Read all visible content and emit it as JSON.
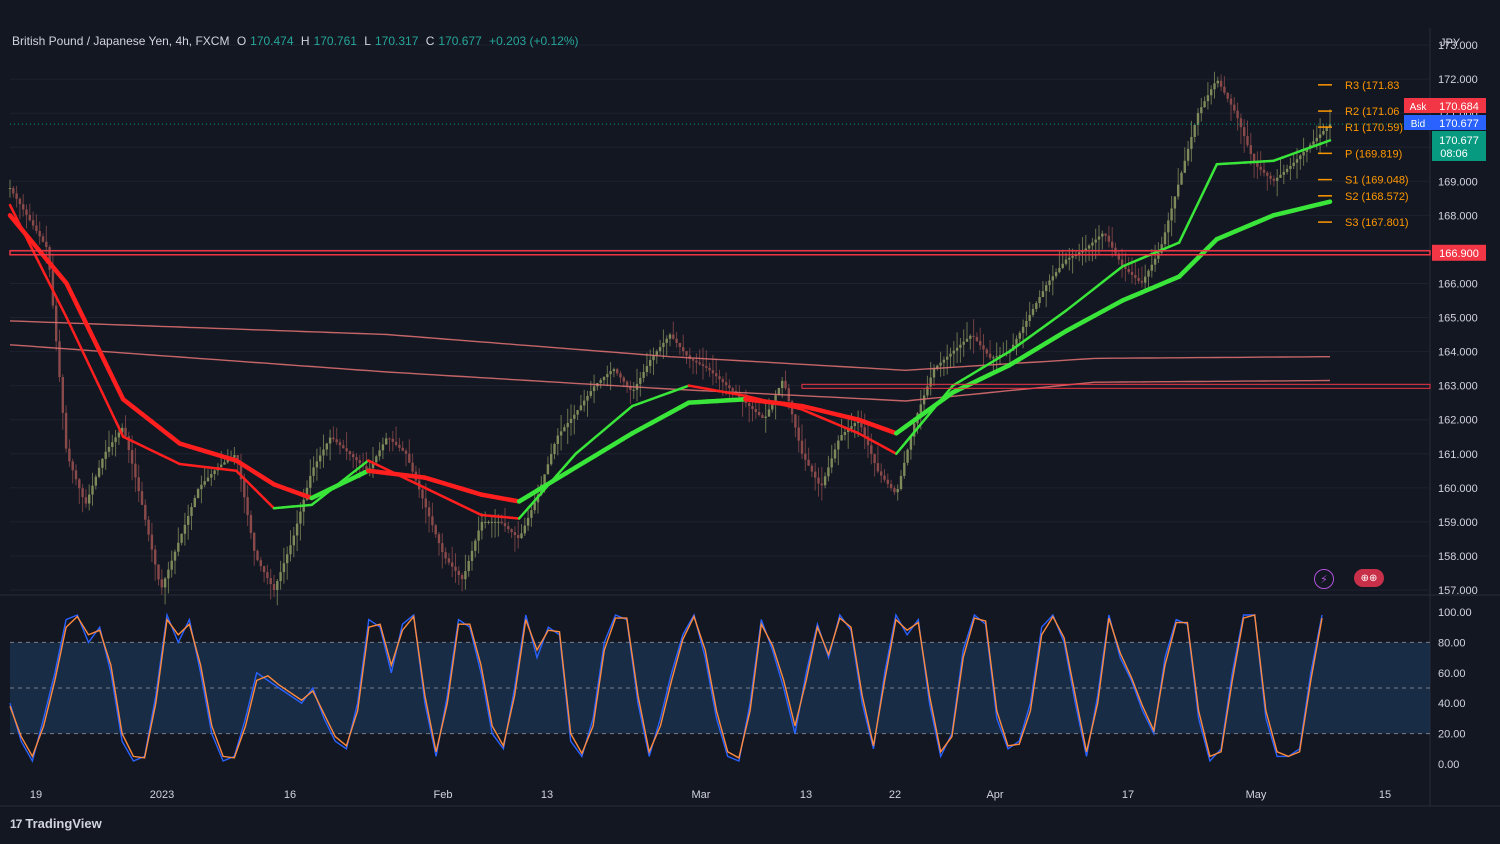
{
  "header": {
    "symbol": "British Pound / Japanese Yen, 4h, FXCM",
    "o_label": "O",
    "o": "170.474",
    "h_label": "H",
    "h": "170.761",
    "l_label": "L",
    "l": "170.317",
    "c_label": "C",
    "c": "170.677",
    "change": "+0.203 (+0.12%)"
  },
  "brand": "TradingView",
  "colors": {
    "background": "#131722",
    "grid": "#1e2230",
    "text": "#d1d4dc",
    "bull_ribbon": "#39e639",
    "bear_ribbon": "#ff1f1f",
    "resistance": "#f23645",
    "pivot": "#ff9800",
    "stoch_k": "#2962ff",
    "stoch_d": "#ff8a3d",
    "stoch_band": "#1b3453"
  },
  "icons": [
    "lightning-icon",
    "uk-japan-flags-icon"
  ],
  "chart_data": [
    {
      "type": "candlestick",
      "title": "",
      "ylabel": "JPY",
      "ylim": [
        157.0,
        173.0
      ],
      "y_ticks": [
        "173.000",
        "172.000",
        "171.000",
        "170.000",
        "169.000",
        "168.000",
        "167.000",
        "166.000",
        "165.000",
        "164.000",
        "163.000",
        "162.000",
        "161.000",
        "160.000",
        "159.000",
        "158.000",
        "157.000"
      ],
      "x_ticks": [
        "19",
        "2023",
        "16",
        "Feb",
        "13",
        "Mar",
        "13",
        "22",
        "Apr",
        "17",
        "May",
        "15"
      ],
      "price_path": [
        [
          0,
          168.8
        ],
        [
          4,
          167.0
        ],
        [
          6,
          161.0
        ],
        [
          8,
          159.5
        ],
        [
          10,
          161.0
        ],
        [
          12,
          161.8
        ],
        [
          14,
          159.5
        ],
        [
          16,
          157.0
        ],
        [
          18,
          158.5
        ],
        [
          20,
          160.0
        ],
        [
          22,
          160.6
        ],
        [
          24,
          161.0
        ],
        [
          26,
          158.0
        ],
        [
          28,
          157.0
        ],
        [
          30,
          158.5
        ],
        [
          32,
          160.5
        ],
        [
          34,
          161.5
        ],
        [
          36,
          161.0
        ],
        [
          38,
          160.5
        ],
        [
          40,
          161.5
        ],
        [
          42,
          161.0
        ],
        [
          44,
          159.5
        ],
        [
          46,
          158.0
        ],
        [
          48,
          157.3
        ],
        [
          50,
          159.0
        ],
        [
          52,
          159.0
        ],
        [
          54,
          158.5
        ],
        [
          56,
          159.8
        ],
        [
          58,
          161.5
        ],
        [
          60,
          162.2
        ],
        [
          62,
          163.0
        ],
        [
          64,
          163.5
        ],
        [
          66,
          162.8
        ],
        [
          68,
          163.8
        ],
        [
          70,
          164.5
        ],
        [
          72,
          163.8
        ],
        [
          74,
          163.5
        ],
        [
          76,
          163.0
        ],
        [
          78,
          162.5
        ],
        [
          80,
          162.0
        ],
        [
          82,
          163.2
        ],
        [
          84,
          161.0
        ],
        [
          86,
          160.0
        ],
        [
          88,
          161.5
        ],
        [
          90,
          162.0
        ],
        [
          92,
          160.5
        ],
        [
          94,
          159.8
        ],
        [
          96,
          162.0
        ],
        [
          98,
          163.5
        ],
        [
          100,
          164.0
        ],
        [
          102,
          164.5
        ],
        [
          104,
          163.8
        ],
        [
          106,
          164.0
        ],
        [
          108,
          165.0
        ],
        [
          110,
          166.0
        ],
        [
          112,
          166.7
        ],
        [
          114,
          167.0
        ],
        [
          116,
          167.5
        ],
        [
          118,
          166.5
        ],
        [
          120,
          166.0
        ],
        [
          122,
          167.0
        ],
        [
          124,
          169.0
        ],
        [
          126,
          171.0
        ],
        [
          128,
          172.0
        ],
        [
          130,
          171.0
        ],
        [
          132,
          169.5
        ],
        [
          134,
          169.0
        ],
        [
          136,
          169.5
        ],
        [
          138,
          170.1
        ],
        [
          140,
          170.677
        ]
      ],
      "ribbons": {
        "fast": [
          [
            0,
            168.3
          ],
          [
            6,
            165.0
          ],
          [
            12,
            161.5
          ],
          [
            18,
            160.7
          ],
          [
            24,
            160.5
          ],
          [
            28,
            159.4
          ],
          [
            32,
            159.5
          ],
          [
            38,
            160.8
          ],
          [
            44,
            160.0
          ],
          [
            50,
            159.2
          ],
          [
            54,
            159.1
          ],
          [
            60,
            161.0
          ],
          [
            66,
            162.4
          ],
          [
            72,
            163.0
          ],
          [
            78,
            162.7
          ],
          [
            84,
            162.3
          ],
          [
            90,
            161.6
          ],
          [
            94,
            161.0
          ],
          [
            100,
            163.0
          ],
          [
            106,
            164.0
          ],
          [
            112,
            165.2
          ],
          [
            118,
            166.5
          ],
          [
            124,
            167.2
          ],
          [
            128,
            169.5
          ],
          [
            134,
            169.6
          ],
          [
            140,
            170.2
          ]
        ],
        "slow": [
          [
            0,
            168.0
          ],
          [
            6,
            166.0
          ],
          [
            12,
            162.6
          ],
          [
            18,
            161.3
          ],
          [
            24,
            160.8
          ],
          [
            28,
            160.1
          ],
          [
            32,
            159.7
          ],
          [
            38,
            160.5
          ],
          [
            44,
            160.3
          ],
          [
            50,
            159.8
          ],
          [
            54,
            159.6
          ],
          [
            60,
            160.6
          ],
          [
            66,
            161.6
          ],
          [
            72,
            162.5
          ],
          [
            78,
            162.6
          ],
          [
            84,
            162.4
          ],
          [
            90,
            162.0
          ],
          [
            94,
            161.6
          ],
          [
            100,
            162.8
          ],
          [
            106,
            163.6
          ],
          [
            112,
            164.6
          ],
          [
            118,
            165.5
          ],
          [
            124,
            166.2
          ],
          [
            128,
            167.3
          ],
          [
            134,
            168.0
          ],
          [
            140,
            168.4
          ]
        ]
      },
      "moving_averages": [
        {
          "points": [
            [
              0,
              164.9
            ],
            [
              40,
              164.5
            ],
            [
              70,
              163.85
            ],
            [
              95,
              163.45
            ],
            [
              115,
              163.8
            ],
            [
              140,
              163.85
            ]
          ]
        },
        {
          "points": [
            [
              0,
              164.2
            ],
            [
              40,
              163.4
            ],
            [
              70,
              162.9
            ],
            [
              95,
              162.55
            ],
            [
              115,
              163.1
            ],
            [
              140,
              163.15
            ]
          ]
        }
      ],
      "horizontal_levels": [
        {
          "value": 166.9,
          "label": "166.900",
          "kind": "resistance"
        },
        {
          "value": 162.98,
          "label": "",
          "kind": "support-zone"
        }
      ],
      "pivots": [
        {
          "label": "R3 (171.83",
          "value": 171.83
        },
        {
          "label": "R2 (171.06",
          "value": 171.06
        },
        {
          "label": "R1 (170.59)",
          "value": 170.59
        },
        {
          "label": "P (169.819)",
          "value": 169.819
        },
        {
          "label": "S1 (169.048)",
          "value": 169.048
        },
        {
          "label": "S2 (168.572)",
          "value": 168.572
        },
        {
          "label": "S3 (167.801)",
          "value": 167.801
        }
      ],
      "price_tags": {
        "ask_label": "Ask",
        "ask": "170.684",
        "bid_label": "Bid",
        "bid": "170.677",
        "last": "170.677",
        "countdown": "08:06"
      }
    },
    {
      "type": "line",
      "title": "",
      "ylim": [
        0,
        100
      ],
      "y_ticks": [
        "100.00",
        "80.00",
        "60.00",
        "40.00",
        "20.00",
        "0.00"
      ],
      "band": [
        20,
        80
      ],
      "midline": 50,
      "series": [
        {
          "values": [
            40,
            15,
            2,
            30,
            60,
            95,
            98,
            80,
            90,
            60,
            15,
            2,
            5,
            45,
            98,
            80,
            95,
            60,
            20,
            2,
            5,
            30,
            60,
            55,
            50,
            45,
            40,
            50,
            30,
            15,
            10,
            40,
            95,
            90,
            60,
            92,
            98,
            40,
            5,
            45,
            95,
            90,
            60,
            20,
            10,
            50,
            98,
            70,
            90,
            85,
            15,
            5,
            30,
            80,
            98,
            95,
            40,
            5,
            30,
            60,
            85,
            98,
            70,
            30,
            5,
            2,
            40,
            95,
            75,
            50,
            20,
            60,
            92,
            70,
            98,
            88,
            40,
            10,
            60,
            98,
            85,
            95,
            40,
            5,
            20,
            75,
            98,
            92,
            30,
            10,
            15,
            40,
            90,
            98,
            80,
            40,
            5,
            45,
            98,
            70,
            55,
            35,
            20,
            70,
            95,
            92,
            30,
            2,
            10,
            60,
            98,
            98,
            30,
            5,
            5,
            10,
            60,
            98
          ]
        },
        {
          "values": [
            38,
            18,
            5,
            25,
            55,
            90,
            97,
            85,
            88,
            65,
            20,
            5,
            4,
            40,
            95,
            85,
            92,
            65,
            25,
            5,
            4,
            25,
            55,
            58,
            52,
            47,
            42,
            48,
            33,
            18,
            12,
            35,
            90,
            92,
            65,
            88,
            97,
            45,
            8,
            40,
            92,
            92,
            65,
            25,
            12,
            45,
            95,
            75,
            88,
            87,
            20,
            7,
            25,
            75,
            96,
            96,
            45,
            8,
            25,
            55,
            82,
            97,
            75,
            35,
            8,
            4,
            35,
            92,
            78,
            55,
            25,
            55,
            90,
            72,
            96,
            90,
            45,
            12,
            55,
            95,
            88,
            93,
            45,
            8,
            18,
            70,
            96,
            94,
            35,
            12,
            13,
            35,
            85,
            97,
            83,
            45,
            8,
            40,
            96,
            73,
            57,
            38,
            22,
            65,
            93,
            93,
            35,
            5,
            8,
            55,
            96,
            98,
            35,
            8,
            5,
            8,
            55,
            96
          ]
        }
      ]
    }
  ]
}
